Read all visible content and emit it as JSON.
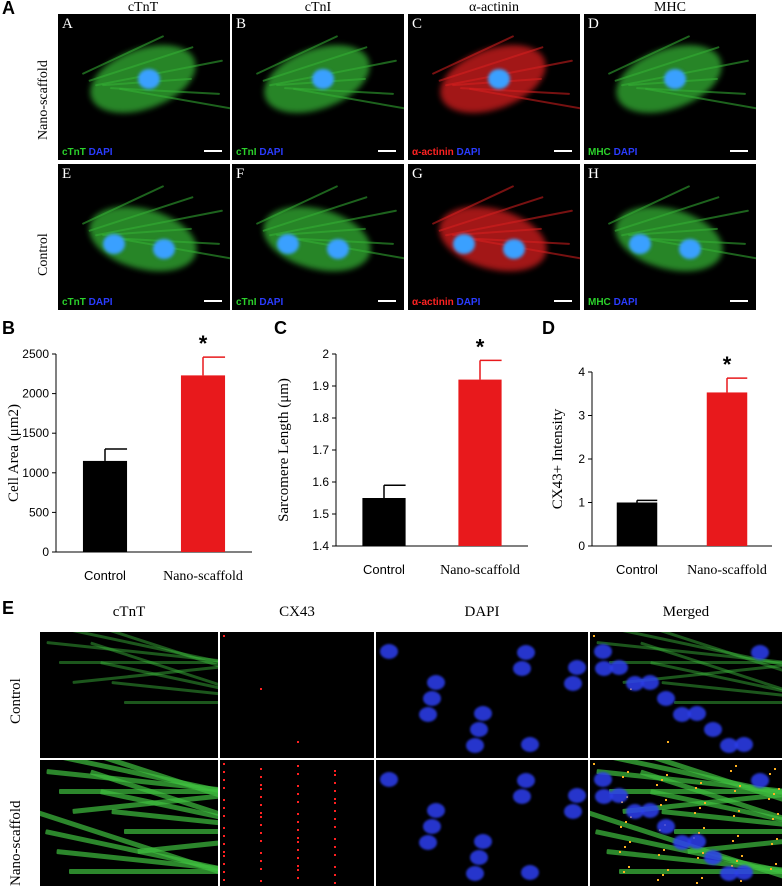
{
  "panel_letters": {
    "a": "A",
    "b": "B",
    "c": "C",
    "d": "D",
    "e": "E"
  },
  "panel_a": {
    "col_titles": [
      "cTnT",
      "cTnI",
      "α-actinin",
      "MHC"
    ],
    "row_labels": [
      "Nano-scaffold",
      "Control"
    ],
    "images": [
      {
        "sub": "A",
        "marker": "cTnT",
        "marker_color": "#2bd12b",
        "dapi": "DAPI",
        "channel": "green"
      },
      {
        "sub": "B",
        "marker": "cTnI",
        "marker_color": "#2bd12b",
        "dapi": "DAPI",
        "channel": "green"
      },
      {
        "sub": "C",
        "marker": "α-actinin",
        "marker_color": "#ff2222",
        "dapi": "DAPI",
        "channel": "red"
      },
      {
        "sub": "D",
        "marker": "MHC",
        "marker_color": "#2bd12b",
        "dapi": "DAPI",
        "channel": "green"
      },
      {
        "sub": "E",
        "marker": "cTnT",
        "marker_color": "#2bd12b",
        "dapi": "DAPI",
        "channel": "green"
      },
      {
        "sub": "F",
        "marker": "cTnI",
        "marker_color": "#2bd12b",
        "dapi": "DAPI",
        "channel": "green"
      },
      {
        "sub": "G",
        "marker": "α-actinin",
        "marker_color": "#ff2222",
        "dapi": "DAPI",
        "channel": "red"
      },
      {
        "sub": "H",
        "marker": "MHC",
        "marker_color": "#2bd12b",
        "dapi": "DAPI",
        "channel": "green"
      }
    ]
  },
  "chart_data": [
    {
      "type": "bar",
      "categories": [
        "Control",
        "Nano-scaffold"
      ],
      "values": [
        1150,
        2230
      ],
      "errors": [
        150,
        230
      ],
      "ylabel": "Cell Area (μm2)",
      "ylim": [
        0,
        2500
      ],
      "yticks": [
        0,
        500,
        1000,
        1500,
        2000,
        2500
      ],
      "colors": [
        "#000000",
        "#e8191c"
      ],
      "significance": [
        "",
        "*"
      ]
    },
    {
      "type": "bar",
      "categories": [
        "Control",
        "Nano-scaffold"
      ],
      "values": [
        1.55,
        1.92
      ],
      "errors": [
        0.04,
        0.06
      ],
      "ylabel": "Sarcomere Length (μm)",
      "ylim": [
        1.4,
        2.0
      ],
      "yticks": [
        "1.4",
        "1.5",
        "1.6",
        "1.7",
        "1.8",
        "1.9",
        "2"
      ],
      "colors": [
        "#000000",
        "#e8191c"
      ],
      "significance": [
        "",
        "*"
      ]
    },
    {
      "type": "bar",
      "categories": [
        "Control",
        "Nano-scaffold"
      ],
      "values": [
        1.0,
        3.53
      ],
      "errors": [
        0.05,
        0.33
      ],
      "ylabel": "CX43+ Intensity",
      "ylim": [
        0,
        4
      ],
      "yticks": [
        0,
        1,
        2,
        3,
        4
      ],
      "colors": [
        "#000000",
        "#e8191c"
      ],
      "significance": [
        "",
        "*"
      ]
    }
  ],
  "panel_e": {
    "col_titles": [
      "cTnT",
      "CX43",
      "DAPI",
      "Merged"
    ],
    "row_labels": [
      "Control",
      "Nano-scaffold"
    ]
  }
}
